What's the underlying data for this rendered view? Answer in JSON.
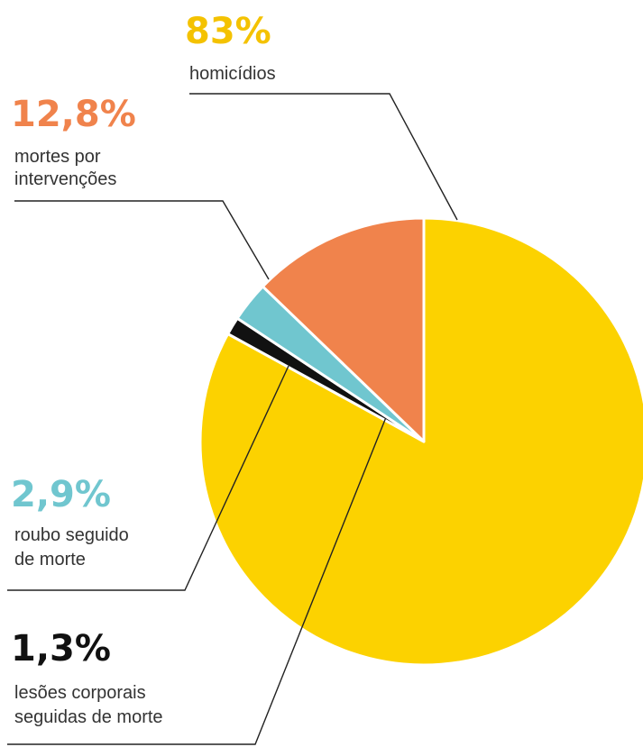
{
  "chart_data": {
    "type": "pie",
    "title": "",
    "slices": [
      {
        "label_lines": [
          "homicídios"
        ],
        "value": 83,
        "display": "83%",
        "color": "#fcd200"
      },
      {
        "label_lines": [
          "lesões corporais",
          "seguidas de morte"
        ],
        "value": 1.3,
        "display": "1,3%",
        "color": "#111111"
      },
      {
        "label_lines": [
          "roubo seguido",
          "de morte"
        ],
        "value": 2.9,
        "display": "2,9%",
        "color": "#70c6cf"
      },
      {
        "label_lines": [
          "mortes por",
          "intervenções"
        ],
        "value": 12.8,
        "display": "12,8%",
        "color": "#f0834c"
      }
    ],
    "start_angle_deg": 0,
    "direction": "clockwise",
    "label_colors": [
      "#f4c200",
      "#111111",
      "#70c6cf",
      "#f0834c"
    ],
    "leader_line_color": "#222222"
  }
}
